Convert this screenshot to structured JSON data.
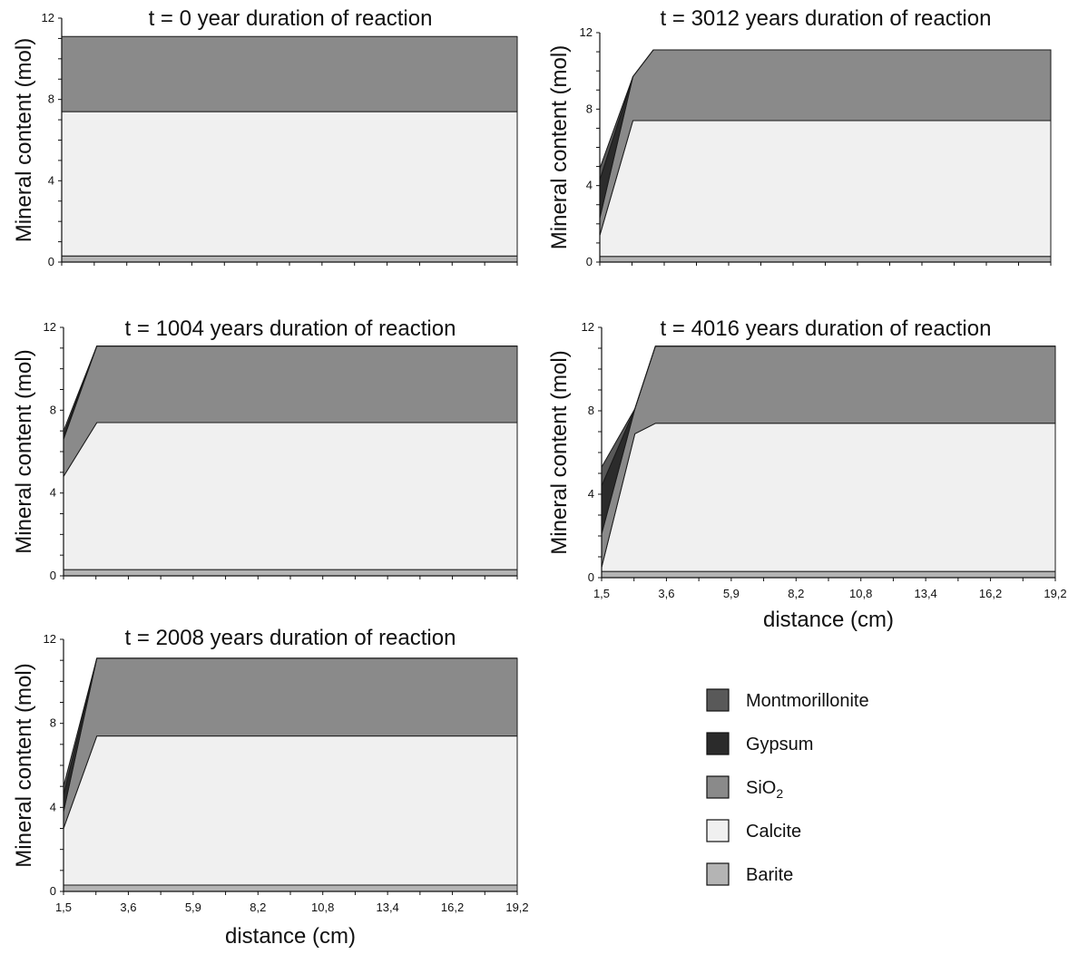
{
  "legend": [
    {
      "key": "montmorillonite",
      "label": "Montmorillonite",
      "color": "#595959"
    },
    {
      "key": "gypsum",
      "label": "Gypsum",
      "color": "#2b2b2b"
    },
    {
      "key": "sio2",
      "label": "SiO",
      "sub": "2",
      "color": "#8a8a8a"
    },
    {
      "key": "calcite",
      "label": "Calcite",
      "color": "#f0f0f0"
    },
    {
      "key": "barite",
      "label": "Barite",
      "color": "#b4b4b4"
    }
  ],
  "chart_data": [
    {
      "id": "t0",
      "type": "area",
      "stacked": true,
      "title": "t  = 0 year duration of reaction",
      "ylabel": "Mineral content (mol)",
      "xlabel": "",
      "ylim": [
        0,
        12
      ],
      "yticks": [
        "0",
        "4",
        "8",
        "12"
      ],
      "x_tick_labels": [],
      "x": [
        1.5,
        19.2
      ],
      "series": [
        {
          "key": "barite",
          "values": [
            0.3,
            0.3
          ]
        },
        {
          "key": "calcite",
          "values": [
            7.1,
            7.1
          ]
        },
        {
          "key": "sio2",
          "values": [
            3.7,
            3.7
          ]
        },
        {
          "key": "gypsum",
          "values": [
            0,
            0
          ]
        },
        {
          "key": "montmorillonite",
          "values": [
            0,
            0
          ]
        }
      ]
    },
    {
      "id": "t1004",
      "type": "area",
      "stacked": true,
      "title": "t = 1004 years duration of reaction",
      "ylabel": "Mineral content (mol)",
      "xlabel": "",
      "ylim": [
        0,
        12
      ],
      "yticks": [
        "0",
        "4",
        "8",
        "12"
      ],
      "x_tick_labels": [],
      "x": [
        1.5,
        2.8,
        19.2
      ],
      "series": [
        {
          "key": "barite",
          "values": [
            0.3,
            0.3,
            0.3
          ]
        },
        {
          "key": "calcite",
          "values": [
            4.5,
            7.1,
            7.1
          ]
        },
        {
          "key": "sio2",
          "values": [
            1.8,
            3.7,
            3.7
          ]
        },
        {
          "key": "gypsum",
          "values": [
            0.2,
            0,
            0
          ]
        },
        {
          "key": "montmorillonite",
          "values": [
            0.2,
            0,
            0
          ]
        }
      ]
    },
    {
      "id": "t2008",
      "type": "area",
      "stacked": true,
      "title": "t = 2008 years duration of reaction",
      "ylabel": "Mineral content (mol)",
      "xlabel": "distance (cm)",
      "ylim": [
        0,
        12
      ],
      "yticks": [
        "0",
        "4",
        "8",
        "12"
      ],
      "x_tick_labels": [
        "1,5",
        "3,6",
        "5,9",
        "8,2",
        "10,8",
        "13,4",
        "16,2",
        "19,2"
      ],
      "x": [
        1.5,
        2.8,
        19.2
      ],
      "series": [
        {
          "key": "barite",
          "values": [
            0.3,
            0.3,
            0.3
          ]
        },
        {
          "key": "calcite",
          "values": [
            2.7,
            7.1,
            7.1
          ]
        },
        {
          "key": "sio2",
          "values": [
            0.8,
            3.7,
            3.7
          ]
        },
        {
          "key": "gypsum",
          "values": [
            0.8,
            0,
            0
          ]
        },
        {
          "key": "montmorillonite",
          "values": [
            0.4,
            0,
            0
          ]
        }
      ]
    },
    {
      "id": "t3012",
      "type": "area",
      "stacked": true,
      "title": "t = 3012 years duration of reaction",
      "ylabel": "Mineral content (mol)",
      "xlabel": "",
      "ylim": [
        0,
        12
      ],
      "yticks": [
        "0",
        "4",
        "8",
        "12"
      ],
      "x_tick_labels": [],
      "x": [
        1.5,
        2.8,
        3.6,
        19.2
      ],
      "series": [
        {
          "key": "barite",
          "values": [
            0.3,
            0.3,
            0.3,
            0.3
          ]
        },
        {
          "key": "calcite",
          "values": [
            1.1,
            7.1,
            7.1,
            7.1
          ]
        },
        {
          "key": "sio2",
          "values": [
            0.9,
            2.3,
            3.7,
            3.7
          ]
        },
        {
          "key": "gypsum",
          "values": [
            2.0,
            0,
            0,
            0
          ]
        },
        {
          "key": "montmorillonite",
          "values": [
            0.6,
            0,
            0,
            0
          ]
        }
      ]
    },
    {
      "id": "t4016",
      "type": "area",
      "stacked": true,
      "title": "t = 4016 years duration of reaction",
      "ylabel": "Mineral content (mol)",
      "xlabel": "distance (cm)",
      "ylim": [
        0,
        12
      ],
      "yticks": [
        "0",
        "4",
        "8",
        "12"
      ],
      "x_tick_labels": [
        "1,5",
        "3,6",
        "5,9",
        "8,2",
        "10,8",
        "13,4",
        "16,2",
        "19,2"
      ],
      "x": [
        1.5,
        2.8,
        3.6,
        19.2
      ],
      "series": [
        {
          "key": "barite",
          "values": [
            0.3,
            0.3,
            0.3,
            0.3
          ]
        },
        {
          "key": "calcite",
          "values": [
            0.2,
            6.6,
            7.1,
            7.1
          ]
        },
        {
          "key": "sio2",
          "values": [
            1.6,
            1.2,
            3.7,
            3.7
          ]
        },
        {
          "key": "gypsum",
          "values": [
            2.3,
            0,
            0,
            0
          ]
        },
        {
          "key": "montmorillonite",
          "values": [
            0.9,
            0,
            0,
            0
          ]
        }
      ]
    }
  ]
}
